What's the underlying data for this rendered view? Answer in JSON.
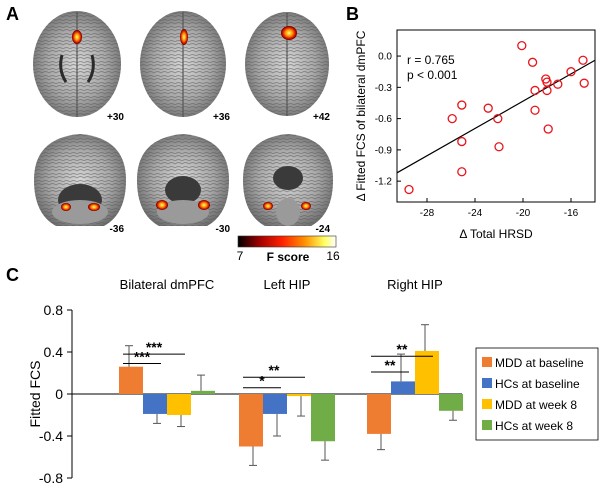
{
  "panels": {
    "a": {
      "letter": "A",
      "slices": [
        {
          "label": "+30",
          "view": "axial"
        },
        {
          "label": "+36",
          "view": "axial"
        },
        {
          "label": "+42",
          "view": "axial"
        },
        {
          "label": "-36",
          "view": "coronal"
        },
        {
          "label": "-30",
          "view": "coronal"
        },
        {
          "label": "-24",
          "view": "coronal"
        }
      ],
      "colorbar": {
        "min": "7",
        "max": "16",
        "label": "F score",
        "colors": [
          "#000000",
          "#a00000",
          "#ff2000",
          "#ff9000",
          "#ffff60",
          "#ffffff"
        ]
      }
    },
    "b": {
      "letter": "B"
    },
    "c": {
      "letter": "C"
    }
  },
  "chart_data": [
    {
      "type": "scatter",
      "panel": "B",
      "xlabel": "Δ Total HRSD",
      "ylabel": "Δ Fitted FCS of bilateral dmPFC",
      "xlim": [
        -30.5,
        -14
      ],
      "ylim": [
        -1.4,
        0.25
      ],
      "xticks": [
        "-28",
        "-24",
        "-20",
        "-16"
      ],
      "xtick_values": [
        -28,
        -24,
        -20,
        -16
      ],
      "yticks": [
        "0.0",
        "-0.3",
        "-0.6",
        "-0.9",
        "-1.2"
      ],
      "ytick_values": [
        0.0,
        -0.3,
        -0.6,
        -0.9,
        -1.2
      ],
      "annotations": [
        "r = 0.765",
        "p < 0.001"
      ],
      "marker_color": "#e8141b",
      "points": [
        {
          "x": -29.5,
          "y": -1.28
        },
        {
          "x": -25.9,
          "y": -0.6
        },
        {
          "x": -25.1,
          "y": -0.47
        },
        {
          "x": -25.1,
          "y": -0.82
        },
        {
          "x": -25.1,
          "y": -1.11
        },
        {
          "x": -22.9,
          "y": -0.5
        },
        {
          "x": -22.1,
          "y": -0.6
        },
        {
          "x": -22.0,
          "y": -0.87
        },
        {
          "x": -20.1,
          "y": 0.1
        },
        {
          "x": -19.2,
          "y": -0.06
        },
        {
          "x": -19.0,
          "y": -0.33
        },
        {
          "x": -19.0,
          "y": -0.52
        },
        {
          "x": -18.1,
          "y": -0.22
        },
        {
          "x": -18.0,
          "y": -0.25
        },
        {
          "x": -18.0,
          "y": -0.33
        },
        {
          "x": -17.9,
          "y": -0.7
        },
        {
          "x": -17.1,
          "y": -0.27
        },
        {
          "x": -16.0,
          "y": -0.15
        },
        {
          "x": -15.0,
          "y": -0.04
        },
        {
          "x": -14.9,
          "y": -0.26
        }
      ],
      "fit_line": {
        "x": [
          -30.5,
          -14
        ],
        "y": [
          -1.12,
          -0.04
        ]
      }
    },
    {
      "type": "bar",
      "panel": "C",
      "ylabel": "Fitted FCS",
      "ylim": [
        -0.8,
        0.8
      ],
      "yticks": [
        "0.8",
        "0.4",
        "0",
        "-0.4",
        "-0.8"
      ],
      "ytick_values": [
        0.8,
        0.4,
        0,
        -0.4,
        -0.8
      ],
      "categories": [
        "Bilateral dmPFC",
        "Left HIP",
        "Right HIP"
      ],
      "series": [
        {
          "name": "MDD at baseline",
          "color": "#ee7d31",
          "values": [
            0.26,
            -0.5,
            -0.38
          ],
          "errors": [
            0.2,
            0.18,
            0.15
          ]
        },
        {
          "name": "HCs at baseline",
          "color": "#4473c5",
          "values": [
            -0.19,
            -0.19,
            0.12
          ],
          "errors": [
            0.09,
            0.21,
            0.26
          ]
        },
        {
          "name": "MDD at week 8",
          "color": "#ffc000",
          "values": [
            -0.2,
            -0.02,
            0.41
          ],
          "errors": [
            0.11,
            0.19,
            0.25
          ]
        },
        {
          "name": "HCs at week 8",
          "color": "#70ad46",
          "values": [
            0.03,
            -0.45,
            -0.16
          ],
          "errors": [
            0.15,
            0.18,
            0.09
          ]
        }
      ],
      "significance": [
        {
          "category": 0,
          "pair": [
            0,
            1
          ],
          "label": "***",
          "level": 0.29
        },
        {
          "category": 0,
          "pair": [
            0,
            2
          ],
          "label": "***",
          "level": 0.38
        },
        {
          "category": 1,
          "pair": [
            0,
            1
          ],
          "label": "*",
          "level": 0.06
        },
        {
          "category": 1,
          "pair": [
            0,
            2
          ],
          "label": "**",
          "level": 0.16
        },
        {
          "category": 2,
          "pair": [
            0,
            1
          ],
          "label": "**",
          "level": 0.21
        },
        {
          "category": 2,
          "pair": [
            0,
            2
          ],
          "label": "**",
          "level": 0.36
        }
      ]
    }
  ]
}
